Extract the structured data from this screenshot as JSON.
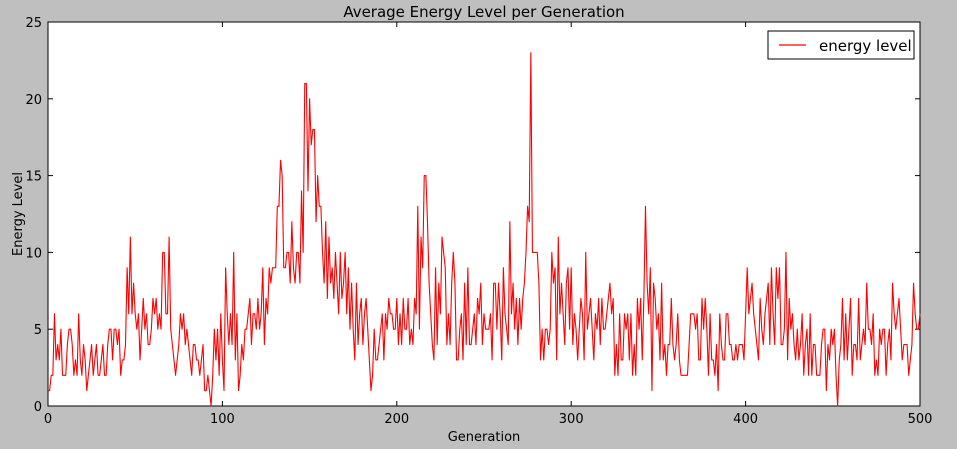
{
  "chart_data": {
    "type": "line",
    "title": "Average Energy Level per Generation",
    "xlabel": "Generation",
    "ylabel": "Energy Level",
    "xlim": [
      0,
      500
    ],
    "ylim": [
      0,
      25
    ],
    "xticks": [
      0,
      100,
      200,
      300,
      400,
      500
    ],
    "yticks": [
      0,
      5,
      10,
      15,
      20,
      25
    ],
    "grid": false,
    "legend_position": "top-right",
    "series": [
      {
        "name": "energy level",
        "color": "#ff0000",
        "values": [
          1,
          1,
          2,
          2,
          6,
          3,
          4,
          3,
          5,
          2,
          2,
          2,
          4,
          5,
          5,
          4,
          2,
          3,
          2,
          6,
          3,
          2,
          4,
          3,
          1,
          2,
          3,
          4,
          2,
          3,
          4,
          2,
          2,
          3,
          4,
          2,
          2,
          4,
          5,
          5,
          3,
          5,
          5,
          4,
          5,
          2,
          3,
          3,
          4,
          9,
          6,
          11,
          6,
          8,
          6,
          5,
          6,
          3,
          5,
          7,
          5,
          6,
          4,
          4,
          5,
          7,
          6,
          7,
          5,
          6,
          5,
          10,
          10,
          6,
          6,
          11,
          5,
          4,
          3,
          2,
          3,
          4,
          6,
          5,
          6,
          4,
          5,
          4,
          3,
          2,
          4,
          4,
          3,
          3,
          2,
          3,
          4,
          1,
          1,
          2,
          1,
          0,
          2,
          5,
          3,
          5,
          2,
          6,
          3,
          1,
          9,
          6,
          4,
          6,
          4,
          10,
          3,
          6,
          1,
          2,
          4,
          3,
          5,
          5,
          6,
          7,
          4,
          6,
          6,
          5,
          7,
          5,
          6,
          9,
          4,
          7,
          6,
          9,
          8,
          9,
          9,
          9,
          13,
          13,
          16,
          15,
          9,
          9,
          10,
          10,
          8,
          12,
          9,
          8,
          10,
          10,
          8,
          14,
          10,
          21,
          21,
          14,
          20,
          17,
          18,
          18,
          12,
          15,
          13,
          13,
          10,
          8,
          12,
          7,
          11,
          8,
          9,
          7,
          10,
          8,
          6,
          10,
          7,
          8,
          10,
          6,
          9,
          5,
          8,
          5,
          3,
          8,
          4,
          6,
          7,
          4,
          6,
          7,
          5,
          3,
          1,
          2,
          5,
          3,
          3,
          4,
          5,
          6,
          3,
          6,
          5,
          7,
          6,
          6,
          5,
          5,
          7,
          4,
          6,
          4,
          7,
          5,
          5,
          7,
          4,
          5,
          4,
          7,
          6,
          13,
          5,
          11,
          9,
          15,
          15,
          12,
          8,
          6,
          4,
          3,
          9,
          4,
          8,
          6,
          11,
          10,
          9,
          4,
          6,
          4,
          8,
          10,
          8,
          3,
          3,
          5,
          6,
          3,
          8,
          4,
          9,
          4,
          4,
          5,
          6,
          4,
          7,
          6,
          8,
          4,
          6,
          5,
          5,
          5,
          6,
          3,
          8,
          8,
          5,
          8,
          6,
          3,
          9,
          6,
          5,
          4,
          12,
          6,
          8,
          5,
          7,
          4,
          7,
          5,
          7,
          8,
          10,
          13,
          12,
          23,
          10,
          10,
          10,
          10,
          8,
          3,
          5,
          3,
          5,
          5,
          4,
          5,
          10,
          8,
          9,
          3,
          11,
          6,
          8,
          6,
          4,
          8,
          9,
          5,
          9,
          4,
          6,
          5,
          3,
          5,
          7,
          6,
          3,
          10,
          5,
          6,
          7,
          5,
          3,
          6,
          5,
          7,
          4,
          7,
          5,
          5,
          6,
          7,
          8,
          6,
          7,
          2,
          4,
          2,
          6,
          3,
          3,
          6,
          5,
          6,
          3,
          6,
          2,
          4,
          2,
          7,
          5,
          7,
          3,
          7,
          13,
          8,
          6,
          9,
          1,
          8,
          7,
          5,
          6,
          3,
          8,
          3,
          4,
          2,
          4,
          4,
          7,
          4,
          3,
          4,
          6,
          3,
          2,
          2,
          2,
          2,
          2,
          4,
          6,
          6,
          6,
          5,
          6,
          3,
          3,
          7,
          5,
          7,
          5,
          2,
          6,
          3,
          3,
          2,
          4,
          1,
          6,
          4,
          3,
          3,
          6,
          6,
          4,
          4,
          3,
          3,
          4,
          3,
          4,
          4,
          4,
          3,
          6,
          9,
          6,
          7,
          8,
          6,
          5,
          4,
          3,
          7,
          5,
          4,
          6,
          7,
          8,
          4,
          9,
          6,
          4,
          9,
          7,
          9,
          4,
          4,
          5,
          10,
          3,
          7,
          5,
          6,
          4,
          3,
          5,
          3,
          4,
          6,
          2,
          4,
          5,
          2,
          6,
          2,
          4,
          4,
          2,
          2,
          2,
          4,
          5,
          5,
          1,
          4,
          3,
          5,
          4,
          5,
          2,
          0,
          3,
          4,
          7,
          3,
          6,
          3,
          5,
          7,
          2,
          4,
          4,
          3,
          7,
          3,
          4,
          5,
          4,
          8,
          5,
          5,
          4,
          6,
          2,
          3,
          2,
          5,
          4,
          5,
          5,
          2,
          4,
          5,
          3,
          8,
          6,
          5,
          6,
          7,
          5,
          3,
          4,
          4,
          4,
          2,
          3,
          4,
          8,
          6,
          5,
          5,
          6
        ]
      }
    ]
  }
}
